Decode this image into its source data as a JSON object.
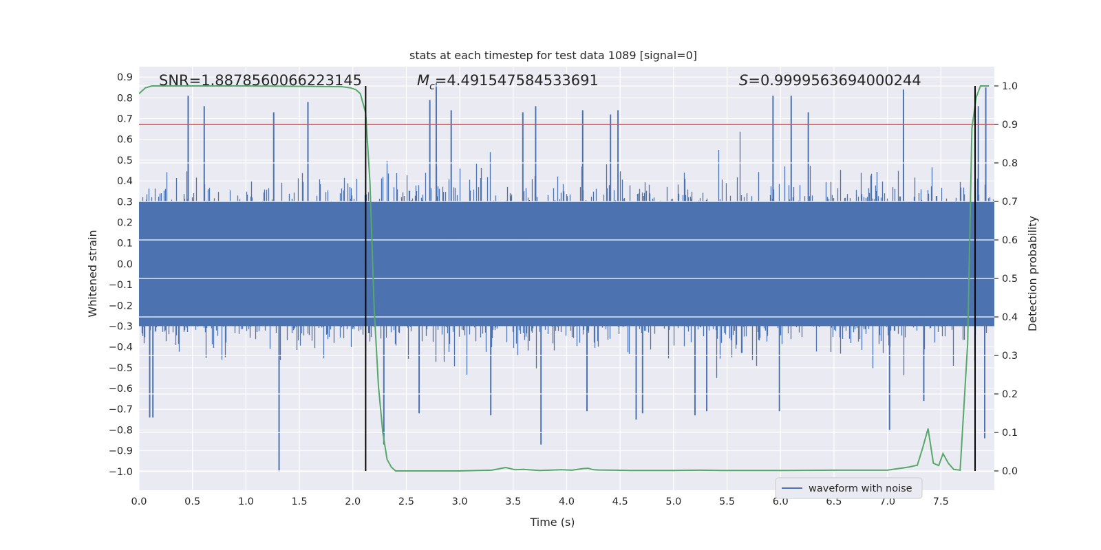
{
  "chart_data": {
    "type": "line",
    "title": "stats at each timestep for test data 1089 [signal=0]",
    "xlabel": "Time (s)",
    "ylabel": "Whitened strain",
    "y2label": "Detection probability",
    "xlim": [
      0.0,
      8.0
    ],
    "ylim": [
      -1.09,
      0.95
    ],
    "y2lim": [
      -0.05,
      1.05
    ],
    "x_ticks": [
      "0.0",
      "0.5",
      "1.0",
      "1.5",
      "2.0",
      "2.5",
      "3.0",
      "3.5",
      "4.0",
      "4.5",
      "5.0",
      "5.5",
      "6.0",
      "6.5",
      "7.0",
      "7.5"
    ],
    "y_ticks": [
      "0.9",
      "0.8",
      "0.7",
      "0.6",
      "0.5",
      "0.4",
      "0.3",
      "0.2",
      "0.1",
      "0.0",
      "−0.1",
      "−0.2",
      "−0.3",
      "−0.4",
      "−0.5",
      "−0.6",
      "−0.7",
      "−0.8",
      "−0.9",
      "−1.0"
    ],
    "y2_ticks": [
      "1.0",
      "0.9",
      "0.8",
      "0.7",
      "0.6",
      "0.5",
      "0.4",
      "0.3",
      "0.2",
      "0.1",
      "0.0"
    ],
    "annotations": {
      "snr": "SNR=1.8878560066223145",
      "mc_symbol": "M",
      "mc_sub": "c",
      "mc_value": "=4.491547584533691",
      "s_symbol": "S",
      "s_value": "=0.9999563694000244"
    },
    "threshold_line": {
      "value": 0.9,
      "axis": "right",
      "color": "#c44e52"
    },
    "vertical_lines": [
      2.12,
      7.82
    ],
    "series": [
      {
        "name": "waveform with noise",
        "axis": "left",
        "color": "#4c72b0",
        "style": "dense-noise",
        "sample_rate_hz": 2048,
        "typical_envelope": [
          -0.4,
          0.4
        ],
        "positive_spikes": [
          {
            "x": 0.46,
            "y": 0.81
          },
          {
            "x": 0.61,
            "y": 0.76
          },
          {
            "x": 1.26,
            "y": 0.73
          },
          {
            "x": 1.58,
            "y": 0.78
          },
          {
            "x": 2.72,
            "y": 0.79
          },
          {
            "x": 2.78,
            "y": 0.87
          },
          {
            "x": 2.92,
            "y": 0.74
          },
          {
            "x": 3.59,
            "y": 0.73
          },
          {
            "x": 3.71,
            "y": 0.76
          },
          {
            "x": 4.15,
            "y": 0.74
          },
          {
            "x": 4.41,
            "y": 0.72
          },
          {
            "x": 4.48,
            "y": 0.74
          },
          {
            "x": 5.93,
            "y": 0.81
          },
          {
            "x": 6.1,
            "y": 0.81
          },
          {
            "x": 6.26,
            "y": 0.73
          },
          {
            "x": 7.15,
            "y": 0.84
          },
          {
            "x": 7.85,
            "y": 0.76
          },
          {
            "x": 7.92,
            "y": 0.85
          }
        ],
        "negative_spikes": [
          {
            "x": 0.1,
            "y": -0.74
          },
          {
            "x": 0.13,
            "y": -0.74
          },
          {
            "x": 1.31,
            "y": -1.0
          },
          {
            "x": 2.29,
            "y": -0.87
          },
          {
            "x": 2.62,
            "y": -0.72
          },
          {
            "x": 3.29,
            "y": -0.73
          },
          {
            "x": 3.76,
            "y": -0.87
          },
          {
            "x": 4.19,
            "y": -0.71
          },
          {
            "x": 4.65,
            "y": -0.75
          },
          {
            "x": 4.71,
            "y": -0.72
          },
          {
            "x": 5.2,
            "y": -0.73
          },
          {
            "x": 5.31,
            "y": -0.71
          },
          {
            "x": 5.99,
            "y": -0.71
          },
          {
            "x": 7.02,
            "y": -0.8
          },
          {
            "x": 7.34,
            "y": -0.66
          },
          {
            "x": 7.91,
            "y": -0.84
          }
        ]
      },
      {
        "name": "detection probability",
        "axis": "right",
        "color": "#55a868",
        "x": [
          0.0,
          0.06,
          0.12,
          1.0,
          1.9,
          1.98,
          2.03,
          2.07,
          2.12,
          2.16,
          2.2,
          2.24,
          2.28,
          2.32,
          2.36,
          2.4,
          3.0,
          3.3,
          3.43,
          3.52,
          3.6,
          3.75,
          3.95,
          4.05,
          4.15,
          4.2,
          4.25,
          4.3,
          4.45,
          4.6,
          5.0,
          5.25,
          5.45,
          6.0,
          6.5,
          7.0,
          7.1,
          7.2,
          7.28,
          7.33,
          7.38,
          7.43,
          7.48,
          7.52,
          7.57,
          7.62,
          7.68,
          7.75,
          7.79,
          7.83,
          7.87,
          7.9,
          7.95
        ],
        "y": [
          0.98,
          0.995,
          1.0,
          1.0,
          0.998,
          0.995,
          0.99,
          0.98,
          0.93,
          0.75,
          0.42,
          0.22,
          0.1,
          0.03,
          0.01,
          0.0,
          0.0,
          0.002,
          0.009,
          0.003,
          0.004,
          0.001,
          0.003,
          0.002,
          0.006,
          0.007,
          0.003,
          0.0025,
          0.002,
          0.001,
          0.001,
          0.002,
          0.001,
          0.001,
          0.002,
          0.002,
          0.006,
          0.01,
          0.015,
          0.06,
          0.11,
          0.02,
          0.014,
          0.045,
          0.02,
          0.004,
          0.002,
          0.33,
          0.89,
          0.97,
          1.0,
          1.0,
          1.0
        ]
      }
    ],
    "legend": {
      "entries": [
        "waveform with noise"
      ],
      "placement": "bottom-right"
    }
  }
}
